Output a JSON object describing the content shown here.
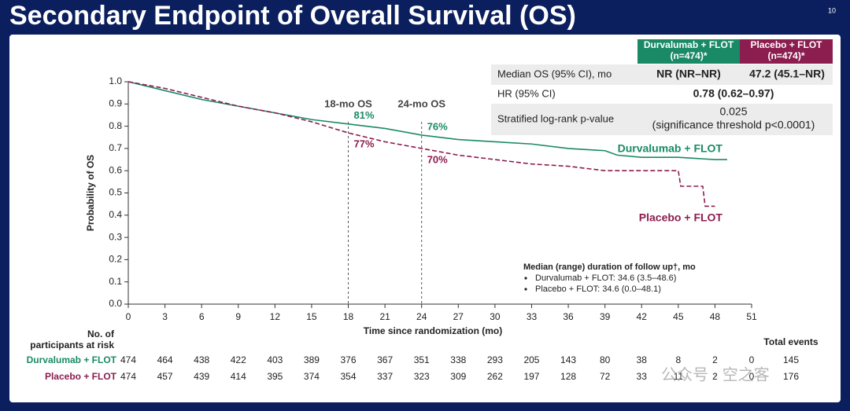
{
  "slide": {
    "title": "Secondary Endpoint of Overall Survival (OS)",
    "page_number": "10",
    "watermark": "公众号 · 空之客"
  },
  "chart_data": {
    "type": "line",
    "ylabel": "Probability of OS",
    "xlabel": "Time since randomization (mo)",
    "xlim": [
      0,
      51
    ],
    "xticks": [
      0,
      3,
      6,
      9,
      12,
      15,
      18,
      21,
      24,
      27,
      30,
      33,
      36,
      39,
      42,
      45,
      48,
      51
    ],
    "ylim": [
      0,
      1
    ],
    "yticks": [
      {
        "value": 0,
        "label": "0.0"
      },
      0.1,
      0.2,
      0.3,
      0.4,
      0.5,
      0.6,
      0.7,
      0.8,
      0.9,
      {
        "value": 1,
        "label": "1.0"
      }
    ],
    "series": [
      {
        "name": "Durvalumab + FLOT",
        "color": "#1a8a66",
        "dashed": false,
        "x": [
          0,
          3,
          6,
          9,
          12,
          15,
          18,
          21,
          24,
          27,
          30,
          33,
          36,
          39,
          40,
          42,
          45,
          48,
          49
        ],
        "values": [
          1.0,
          0.96,
          0.92,
          0.89,
          0.86,
          0.83,
          0.81,
          0.79,
          0.76,
          0.74,
          0.73,
          0.72,
          0.7,
          0.69,
          0.67,
          0.66,
          0.66,
          0.65,
          0.65
        ]
      },
      {
        "name": "Placebo + FLOT",
        "color": "#8b1d4f",
        "dashed": true,
        "x": [
          0,
          3,
          6,
          9,
          12,
          15,
          18,
          21,
          24,
          27,
          30,
          33,
          36,
          39,
          42,
          45,
          45.2,
          47,
          47.2,
          48
        ],
        "values": [
          1.0,
          0.97,
          0.93,
          0.89,
          0.86,
          0.82,
          0.77,
          0.73,
          0.7,
          0.67,
          0.65,
          0.63,
          0.62,
          0.6,
          0.6,
          0.6,
          0.53,
          0.53,
          0.44,
          0.44
        ]
      }
    ],
    "landmarks": [
      {
        "x": 18,
        "label": "18-mo OS",
        "values": [
          0.81,
          0.77
        ],
        "value_labels": [
          "81%",
          "77%"
        ]
      },
      {
        "x": 24,
        "label": "24-mo OS",
        "values": [
          0.76,
          0.7
        ],
        "value_labels": [
          "76%",
          "70%"
        ]
      }
    ]
  },
  "follow_up": {
    "title": "Median (range) duration of follow up†, mo",
    "items": [
      "Durvalumab + FLOT: 34.6 (3.5–48.6)",
      "Placebo + FLOT: 34.6 (0.0–48.1)"
    ]
  },
  "table": {
    "headers": [
      [
        "Durvalumab + FLOT",
        "(n=474)*"
      ],
      [
        "Placebo + FLOT",
        "(n=474)*"
      ]
    ],
    "rows": [
      [
        "Median OS (95% CI), mo",
        "NR (NR–NR)",
        "47.2 (45.1–NR)"
      ],
      [
        "HR (95% CI)",
        "0.78 (0.62–0.97)"
      ],
      [
        "Stratified log-rank p-value",
        "0.025",
        "(significance threshold p<0.0001)"
      ]
    ]
  },
  "risk_table": {
    "title": [
      "No. of",
      "participants at risk"
    ],
    "total_label": "Total events",
    "rows": [
      [
        474,
        464,
        438,
        422,
        403,
        389,
        376,
        367,
        351,
        338,
        293,
        205,
        143,
        80,
        38,
        8,
        2,
        0
      ],
      [
        474,
        457,
        439,
        414,
        395,
        374,
        354,
        337,
        323,
        309,
        262,
        197,
        128,
        72,
        33,
        11,
        2,
        0
      ]
    ],
    "totals": [
      145,
      176
    ]
  }
}
